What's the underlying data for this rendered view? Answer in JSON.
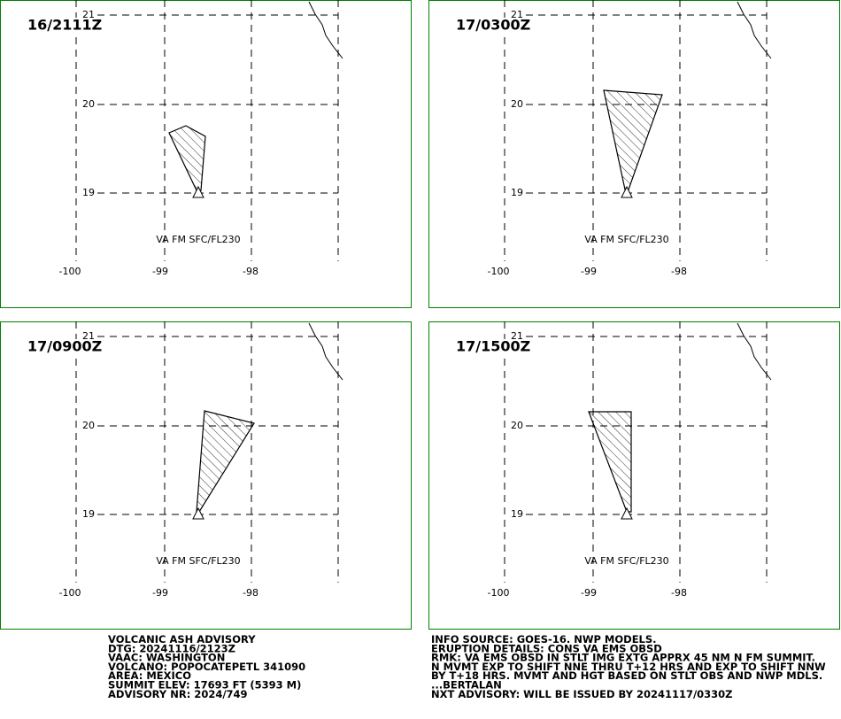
{
  "panels": [
    {
      "time": "16/2111Z",
      "layer": "VA FM SFC/FL230"
    },
    {
      "time": "17/0300Z",
      "layer": "VA FM SFC/FL230"
    },
    {
      "time": "17/0900Z",
      "layer": "VA FM SFC/FL230"
    },
    {
      "time": "17/1500Z",
      "layer": "VA FM SFC/FL230"
    }
  ],
  "lat_labels": [
    "21",
    "20",
    "19"
  ],
  "lon_labels": [
    "-100",
    "-99",
    "-98"
  ],
  "advisory_left": [
    "VOLCANIC ASH ADVISORY",
    "DTG: 20241116/2123Z",
    "VAAC: WASHINGTON",
    "VOLCANO: POPOCATEPETL 341090",
    "AREA: MEXICO",
    "SUMMIT ELEV: 17693 FT (5393 M)",
    "ADVISORY NR: 2024/749"
  ],
  "advisory_right": [
    "INFO SOURCE: GOES-16. NWP MODELS.",
    "ERUPTION DETAILS: CONS VA EMS OBSD",
    "RMK: VA EMS OBSD IN STLT IMG EXTG APPRX 45 NM N FM SUMMIT.",
    "N MVMT EXP TO SHIFT NNE THRU T+12 HRS AND EXP TO SHIFT NNW",
    "BY T+18 HRS. MVMT AND HGT BASED ON STLT OBS AND NWP MDLS.",
    "...BERTALAN",
    "NXT ADVISORY: WILL BE ISSUED BY 20241117/0330Z"
  ]
}
